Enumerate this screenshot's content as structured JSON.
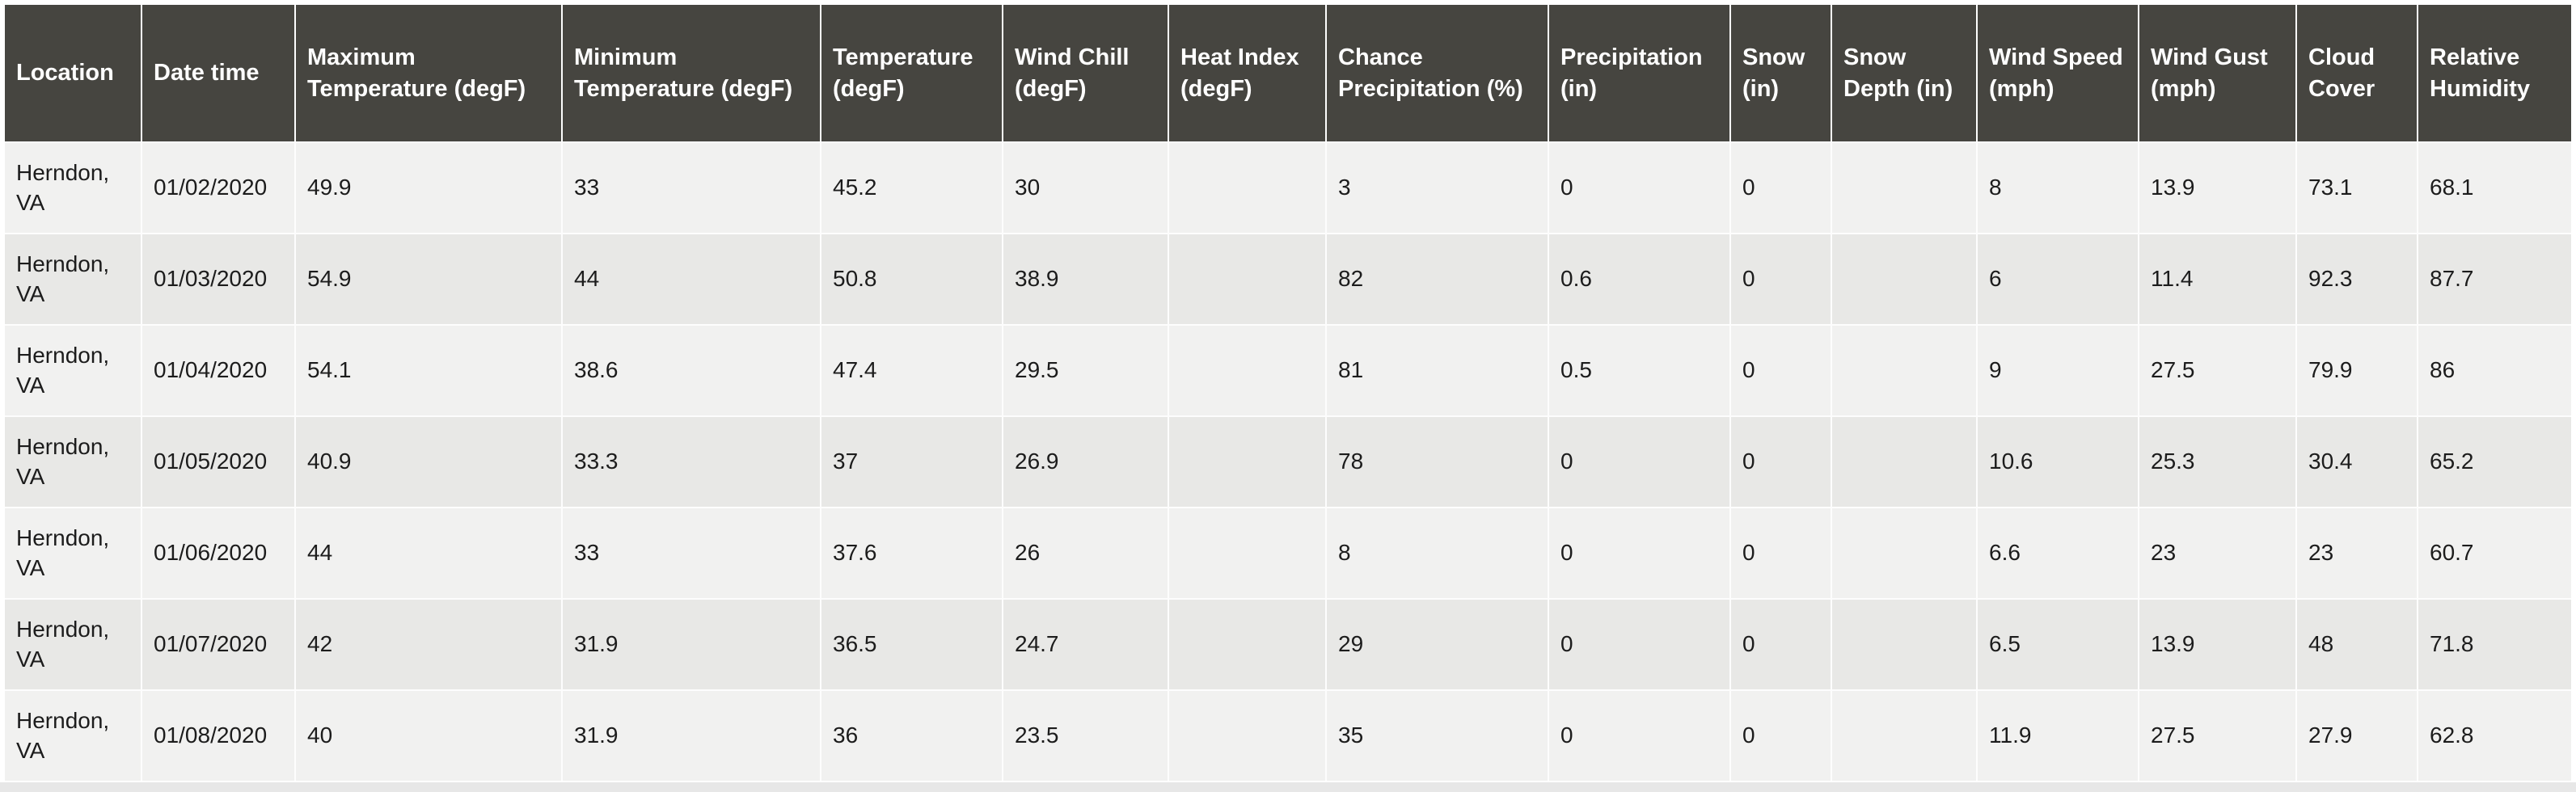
{
  "chart_data": {
    "type": "table",
    "columns": [
      "Location",
      "Date time",
      "Maximum Temperature (degF)",
      "Minimum Temperature (degF)",
      "Temperature (degF)",
      "Wind Chill (degF)",
      "Heat Index (degF)",
      "Chance Precipitation (%)",
      "Precipitation (in)",
      "Snow (in)",
      "Snow Depth (in)",
      "Wind Speed (mph)",
      "Wind Gust (mph)",
      "Cloud Cover",
      "Relative Humidity"
    ],
    "column_keys": [
      "location",
      "date-time",
      "maximum-temperature",
      "minimum-temperature",
      "temperature",
      "wind-chill",
      "heat-index",
      "chance-precipitation",
      "precipitation",
      "snow",
      "snow-depth",
      "wind-speed",
      "wind-gust",
      "cloud-cover",
      "relative-humidity"
    ],
    "rows": [
      [
        "Herndon, VA",
        "01/02/2020",
        "49.9",
        "33",
        "45.2",
        "30",
        "",
        "3",
        "0",
        "0",
        "",
        "8",
        "13.9",
        "73.1",
        "68.1"
      ],
      [
        "Herndon, VA",
        "01/03/2020",
        "54.9",
        "44",
        "50.8",
        "38.9",
        "",
        "82",
        "0.6",
        "0",
        "",
        "6",
        "11.4",
        "92.3",
        "87.7"
      ],
      [
        "Herndon, VA",
        "01/04/2020",
        "54.1",
        "38.6",
        "47.4",
        "29.5",
        "",
        "81",
        "0.5",
        "0",
        "",
        "9",
        "27.5",
        "79.9",
        "86"
      ],
      [
        "Herndon, VA",
        "01/05/2020",
        "40.9",
        "33.3",
        "37",
        "26.9",
        "",
        "78",
        "0",
        "0",
        "",
        "10.6",
        "25.3",
        "30.4",
        "65.2"
      ],
      [
        "Herndon, VA",
        "01/06/2020",
        "44",
        "33",
        "37.6",
        "26",
        "",
        "8",
        "0",
        "0",
        "",
        "6.6",
        "23",
        "23",
        "60.7"
      ],
      [
        "Herndon, VA",
        "01/07/2020",
        "42",
        "31.9",
        "36.5",
        "24.7",
        "",
        "29",
        "0",
        "0",
        "",
        "6.5",
        "13.9",
        "48",
        "71.8"
      ],
      [
        "Herndon, VA",
        "01/08/2020",
        "40",
        "31.9",
        "36",
        "23.5",
        "",
        "35",
        "0",
        "0",
        "",
        "11.9",
        "27.5",
        "27.9",
        "62.8"
      ]
    ]
  },
  "colors": {
    "header_bg": "#464540",
    "header_text": "#ffffff",
    "row_odd": "#f1f1f0",
    "row_even": "#e8e8e6",
    "cell_text": "#1c1c1c",
    "grid_line": "#fdfdfd",
    "page_bg": "#ffffff",
    "bottom_strip": "#e7e7e7"
  }
}
